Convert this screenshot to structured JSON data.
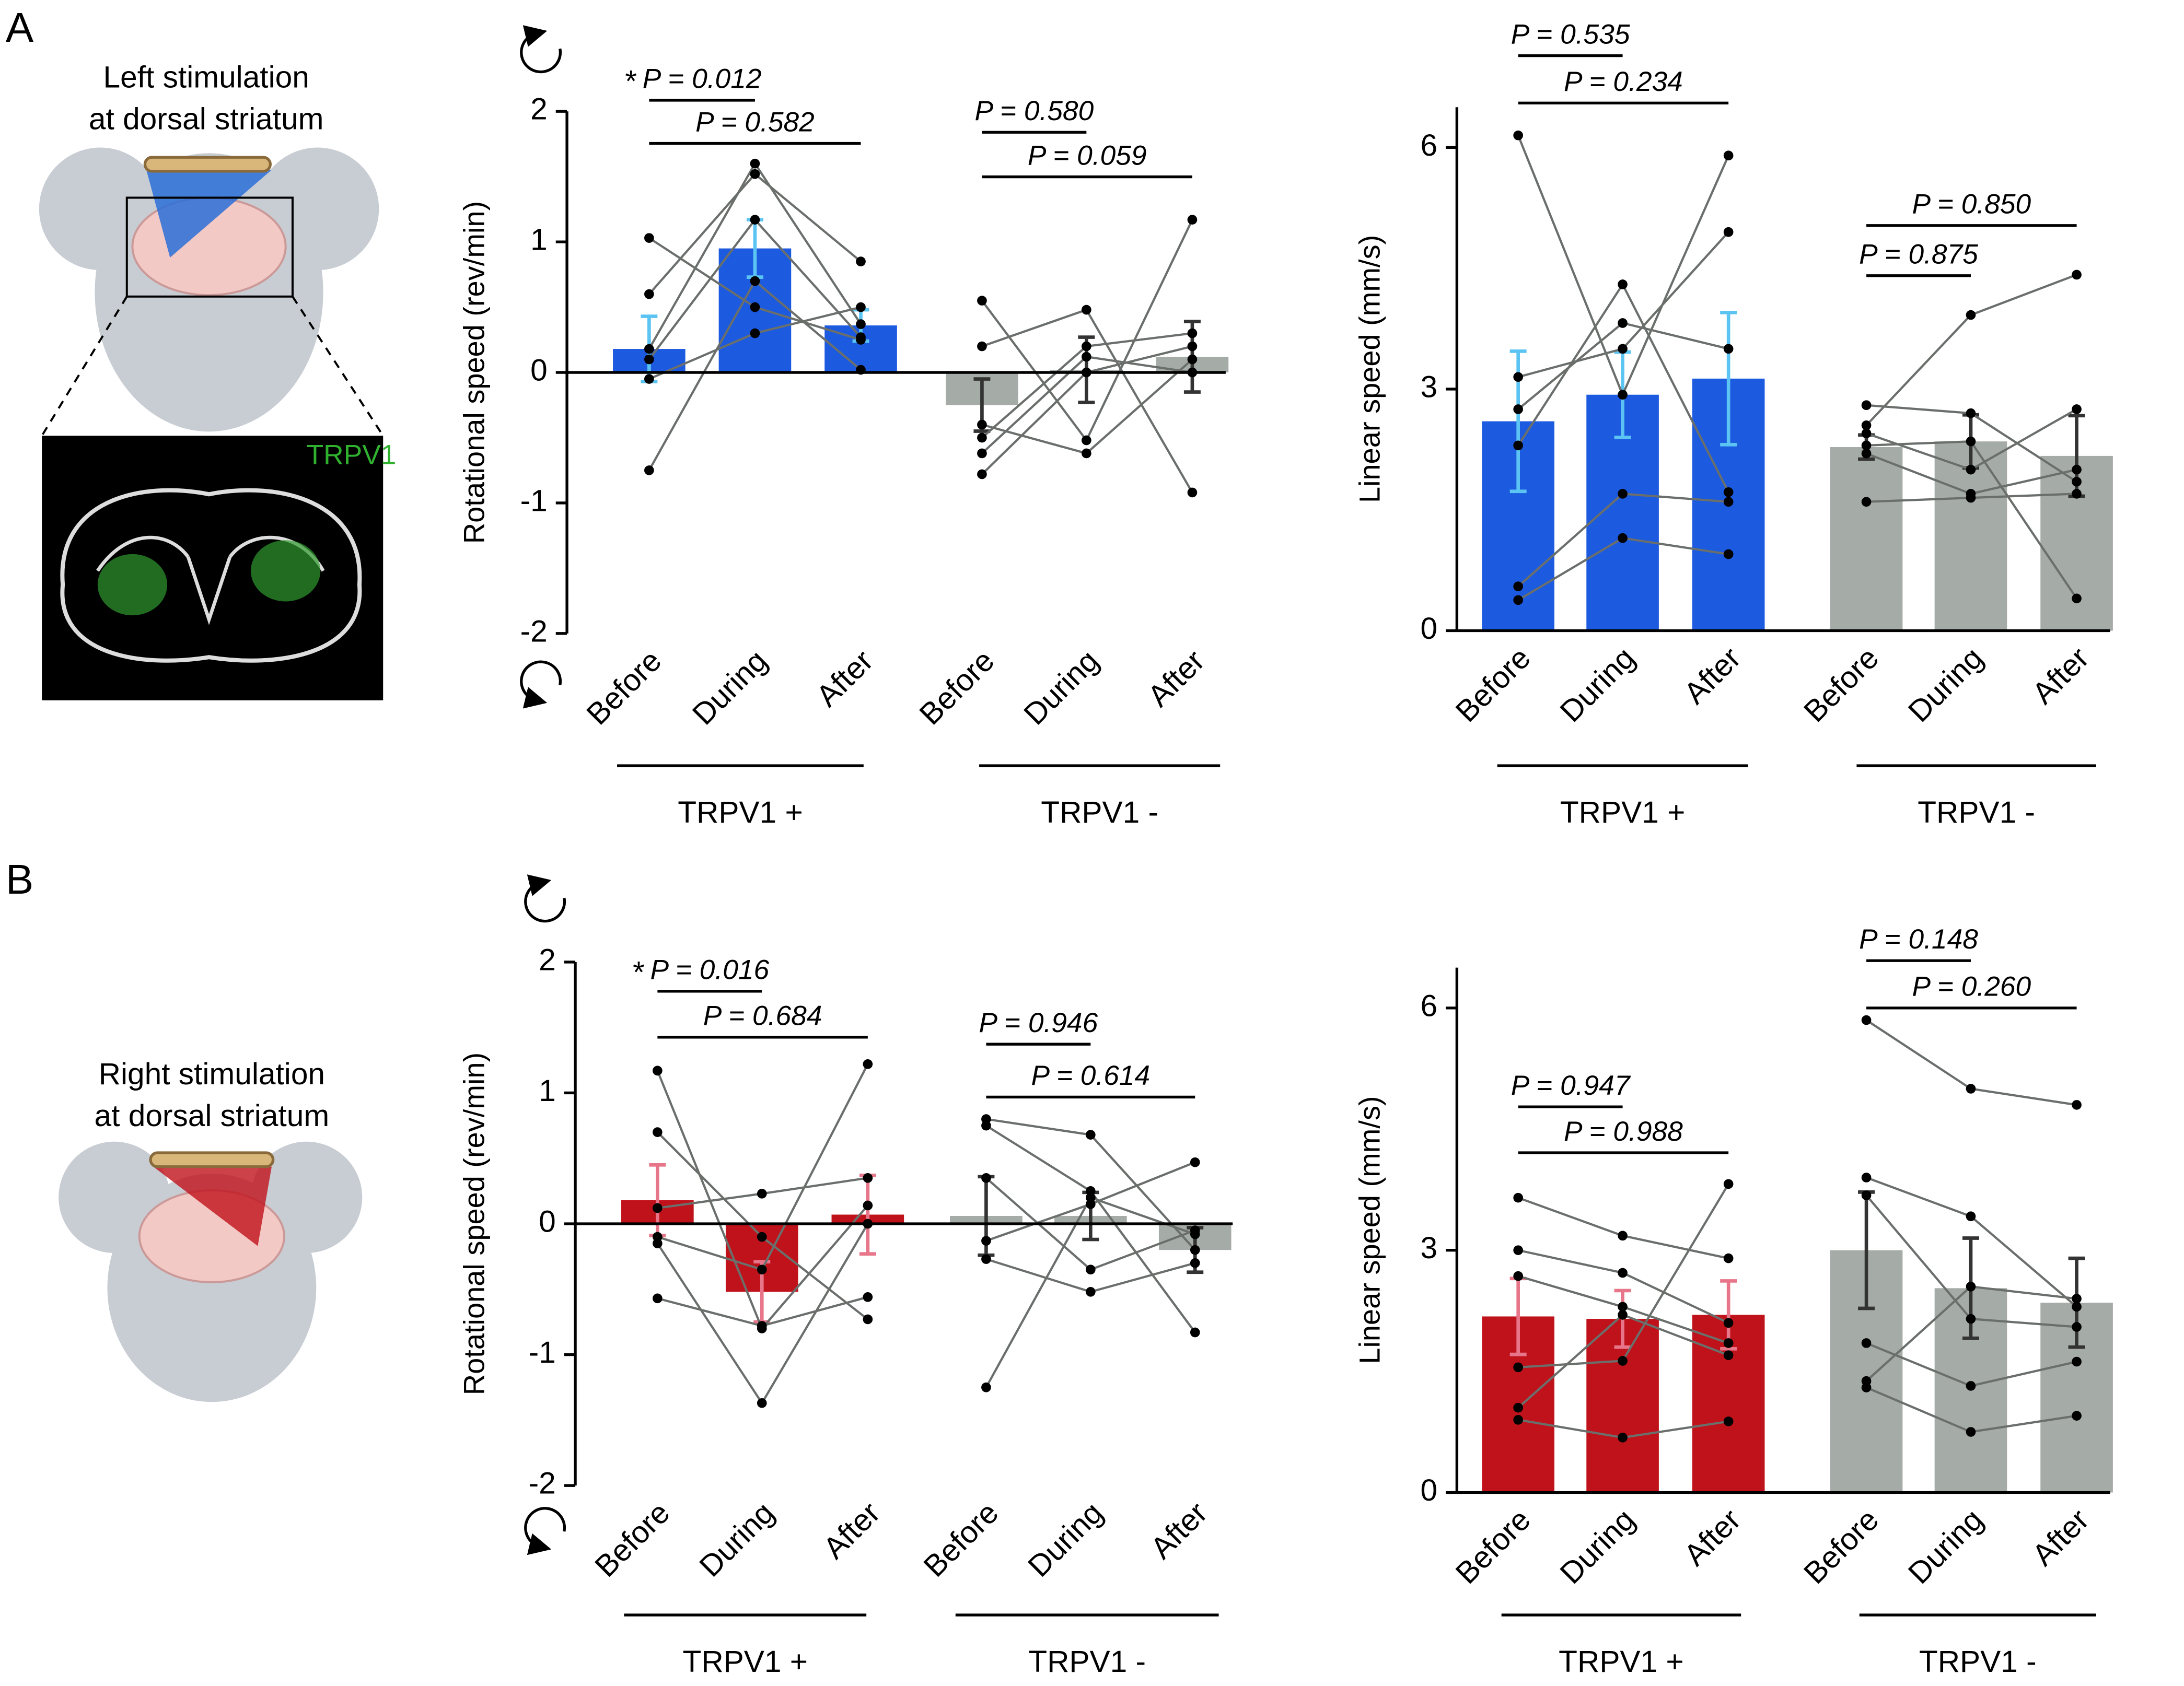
{
  "panels": [
    {
      "letter": "A",
      "caption": [
        "Left stimulation",
        "at dorsal striatum"
      ],
      "image_label": "TRPV1"
    },
    {
      "letter": "B",
      "caption": [
        "Right stimulation",
        "at dorsal striatum"
      ]
    }
  ],
  "chart_data": [
    {
      "type": "bar",
      "y_label": "Rotational speed (rev/min)",
      "ylim": [
        -2,
        2
      ],
      "yticks": [
        -2,
        -1,
        0,
        1,
        2
      ],
      "groups": [
        {
          "label": "TRPV1 +",
          "color": "#1c5ae0",
          "error_color": "#5cc4f2",
          "categories": [
            "Before",
            "During",
            "After"
          ],
          "values": [
            0.18,
            0.95,
            0.36
          ],
          "errors": [
            0.25,
            0.22,
            0.12
          ],
          "subjects": [
            [
              1.03,
              0.5,
              0.25
            ],
            [
              0.6,
              1.52,
              0.85
            ],
            [
              0.18,
              1.6,
              0.37
            ],
            [
              0.1,
              1.17,
              0.27
            ],
            [
              -0.05,
              0.3,
              0.5
            ],
            [
              -0.75,
              0.7,
              0.02
            ]
          ],
          "annotations": [
            {
              "star": "*",
              "text": "P = 0.012"
            },
            {
              "text": "P = 0.582"
            }
          ]
        },
        {
          "label": "TRPV1 -",
          "color": "#a5aba7",
          "error_color": "#333333",
          "categories": [
            "Before",
            "During",
            "After"
          ],
          "values": [
            -0.25,
            0.02,
            0.12
          ],
          "errors": [
            0.2,
            0.25,
            0.27
          ],
          "subjects": [
            [
              0.55,
              -0.52,
              1.17
            ],
            [
              0.2,
              0.48,
              -0.92
            ],
            [
              -0.4,
              -0.62,
              0.1
            ],
            [
              -0.5,
              0.2,
              0.3
            ],
            [
              -0.62,
              0.12,
              0.0
            ],
            [
              -0.78,
              0.0,
              0.2
            ]
          ],
          "annotations": [
            {
              "text": "P = 0.580"
            },
            {
              "text": "P = 0.059"
            }
          ]
        }
      ]
    },
    {
      "type": "bar",
      "y_label": "Linear speed (mm/s)",
      "ylim": [
        0,
        6.5
      ],
      "yticks": [
        0,
        3,
        6
      ],
      "groups": [
        {
          "label": "TRPV1 +",
          "color": "#1c5ae0",
          "error_color": "#5cc4f2",
          "categories": [
            "Before",
            "During",
            "After"
          ],
          "values": [
            2.6,
            2.93,
            3.13
          ],
          "errors": [
            0.87,
            0.53,
            0.82
          ],
          "subjects": [
            [
              6.15,
              2.93,
              5.9
            ],
            [
              3.15,
              3.5,
              4.95
            ],
            [
              2.75,
              3.82,
              3.5
            ],
            [
              2.3,
              4.3,
              1.72
            ],
            [
              0.55,
              1.7,
              1.6
            ],
            [
              0.38,
              1.15,
              0.95
            ]
          ],
          "annotations": [
            {
              "text": "P = 0.535"
            },
            {
              "text": "P = 0.234"
            }
          ]
        },
        {
          "label": "TRPV1 -",
          "color": "#a5aba7",
          "error_color": "#333333",
          "categories": [
            "Before",
            "During",
            "After"
          ],
          "values": [
            2.28,
            2.35,
            2.17
          ],
          "errors": [
            0.15,
            0.33,
            0.5
          ],
          "subjects": [
            [
              2.8,
              2.7,
              1.85
            ],
            [
              2.55,
              3.92,
              4.42
            ],
            [
              2.45,
              2.0,
              2.75
            ],
            [
              2.3,
              2.35,
              0.4
            ],
            [
              2.2,
              1.7,
              2.0
            ],
            [
              1.6,
              1.65,
              1.7
            ]
          ],
          "annotations": [
            {
              "text": "P = 0.875"
            },
            {
              "text": "P = 0.850"
            }
          ]
        }
      ]
    },
    {
      "type": "bar",
      "y_label": "Rotational speed (rev/min)",
      "ylim": [
        -2,
        2
      ],
      "yticks": [
        -2,
        -1,
        0,
        1,
        2
      ],
      "groups": [
        {
          "label": "TRPV1 +",
          "color": "#c0121b",
          "error_color": "#e8768a",
          "categories": [
            "Before",
            "During",
            "After"
          ],
          "values": [
            0.18,
            -0.52,
            0.07
          ],
          "errors": [
            0.27,
            0.23,
            0.3
          ],
          "subjects": [
            [
              1.17,
              -0.8,
              0.14
            ],
            [
              0.7,
              -0.1,
              -0.73
            ],
            [
              0.12,
              0.23,
              0.35
            ],
            [
              -0.1,
              -0.35,
              1.22
            ],
            [
              -0.15,
              -1.37,
              0.0
            ],
            [
              -0.57,
              -0.78,
              -0.56
            ]
          ],
          "annotations": [
            {
              "star": "*",
              "text": "P = 0.016"
            },
            {
              "text": "P = 0.684"
            }
          ]
        },
        {
          "label": "TRPV1 -",
          "color": "#a5aba7",
          "error_color": "#333333",
          "categories": [
            "Before",
            "During",
            "After"
          ],
          "values": [
            0.06,
            0.06,
            -0.2
          ],
          "errors": [
            0.3,
            0.18,
            0.17
          ],
          "subjects": [
            [
              0.8,
              0.68,
              -0.2
            ],
            [
              0.75,
              0.25,
              -0.83
            ],
            [
              0.35,
              -0.35,
              -0.05
            ],
            [
              -0.13,
              0.15,
              0.47
            ],
            [
              -0.27,
              -0.52,
              -0.3
            ],
            [
              -1.25,
              0.2,
              -0.08
            ]
          ],
          "annotations": [
            {
              "text": "P = 0.946"
            },
            {
              "text": "P = 0.614"
            }
          ]
        }
      ]
    },
    {
      "type": "bar",
      "y_label": "Linear speed (mm/s)",
      "ylim": [
        0,
        6.5
      ],
      "yticks": [
        0,
        3,
        6
      ],
      "groups": [
        {
          "label": "TRPV1 +",
          "color": "#c0121b",
          "error_color": "#e8768a",
          "categories": [
            "Before",
            "During",
            "After"
          ],
          "values": [
            2.18,
            2.15,
            2.2
          ],
          "errors": [
            0.47,
            0.35,
            0.42
          ],
          "subjects": [
            [
              3.65,
              3.18,
              2.9
            ],
            [
              3.0,
              2.72,
              2.1
            ],
            [
              2.68,
              2.3,
              1.85
            ],
            [
              1.55,
              1.63,
              3.82
            ],
            [
              1.05,
              2.2,
              1.7
            ],
            [
              0.9,
              0.68,
              0.88
            ]
          ],
          "annotations": [
            {
              "text": "P = 0.947"
            },
            {
              "text": "P = 0.988"
            }
          ]
        },
        {
          "label": "TRPV1 -",
          "color": "#a5aba7",
          "error_color": "#333333",
          "categories": [
            "Before",
            "During",
            "After"
          ],
          "values": [
            3.0,
            2.53,
            2.35
          ],
          "errors": [
            0.72,
            0.62,
            0.55
          ],
          "subjects": [
            [
              5.85,
              5.0,
              4.8
            ],
            [
              3.9,
              3.42,
              2.3
            ],
            [
              3.68,
              2.15,
              2.05
            ],
            [
              1.85,
              1.32,
              1.62
            ],
            [
              1.38,
              2.55,
              2.4
            ],
            [
              1.3,
              0.75,
              0.95
            ]
          ],
          "annotations": [
            {
              "text": "P = 0.148"
            },
            {
              "text": "P = 0.260"
            }
          ]
        }
      ]
    }
  ]
}
